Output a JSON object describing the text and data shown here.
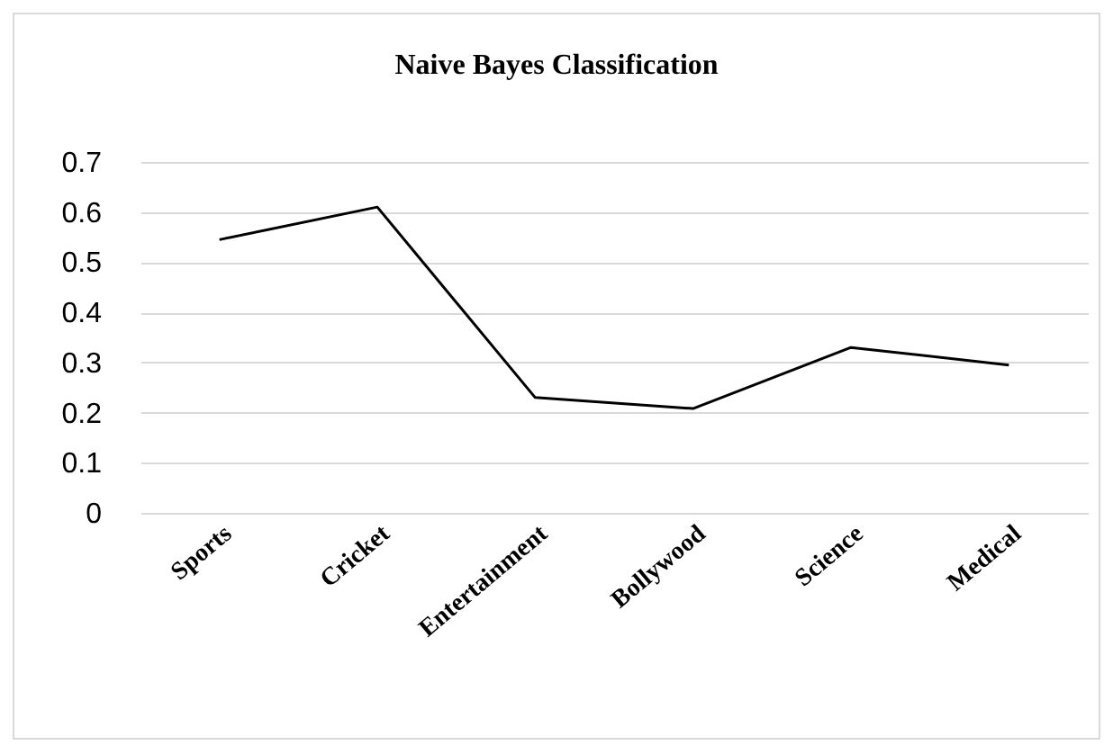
{
  "chart_data": {
    "type": "line",
    "title": "Naive Bayes Classification",
    "categories": [
      "Sports",
      "Cricket",
      "Entertainment",
      "Bollywood",
      "Science",
      "Medical"
    ],
    "series": [
      {
        "color": "#000000",
        "values": [
          0.545,
          0.61,
          0.23,
          0.208,
          0.33,
          0.295
        ]
      }
    ],
    "ylim": [
      0,
      0.7
    ],
    "yticks": [
      0,
      0.1,
      0.2,
      0.3,
      0.4,
      0.5,
      0.6,
      0.7
    ],
    "grid": "y",
    "legend": false,
    "marker": "none",
    "line_style": "solid"
  }
}
